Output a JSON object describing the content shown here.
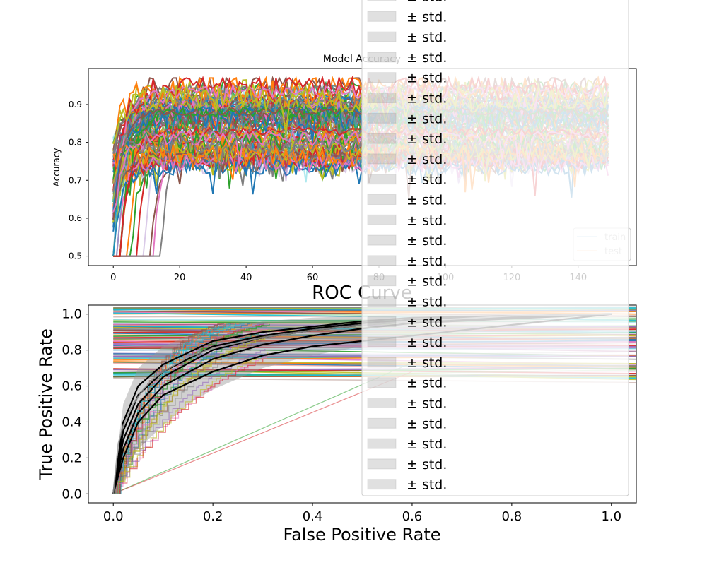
{
  "chart_data": [
    {
      "type": "line",
      "title": "Model Accuracy",
      "xlabel": "",
      "ylabel": "Accuracy",
      "xlim": [
        -7.5,
        157.5
      ],
      "ylim": [
        0.475,
        0.995
      ],
      "xticks": [
        0,
        20,
        40,
        60,
        80,
        100,
        120,
        140
      ],
      "yticks": [
        0.5,
        0.6,
        0.7,
        0.8,
        0.9
      ],
      "grid": false,
      "legend": {
        "position": "lower right",
        "entries": [
          "train",
          "test"
        ]
      },
      "x_range": [
        0,
        149
      ],
      "palette": [
        "#1f77b4",
        "#ff7f0e",
        "#2ca02c",
        "#d62728",
        "#9467bd",
        "#8c564b",
        "#e377c2",
        "#7f7f7f",
        "#bcbd22",
        "#17becf"
      ],
      "runs_description_values": {
        "start_accuracy_range": [
          0.5,
          0.82
        ],
        "plateau_accuracy_range": [
          0.72,
          0.95
        ],
        "late_start_epochs": [
          3,
          5,
          6,
          8,
          10,
          12,
          13,
          15
        ],
        "high_band": [
          0.88,
          0.945
        ],
        "mid_band": [
          0.8,
          0.89
        ],
        "low_band": [
          0.73,
          0.8
        ]
      }
    },
    {
      "type": "line",
      "title": "ROC Curve",
      "xlabel": "False Positive Rate",
      "ylabel": "True Positive Rate",
      "xlim": [
        -0.05,
        1.05
      ],
      "ylim": [
        -0.05,
        1.05
      ],
      "xticks": [
        0.0,
        0.2,
        0.4,
        0.6,
        0.8,
        1.0
      ],
      "yticks": [
        0.0,
        0.2,
        0.4,
        0.6,
        0.8,
        1.0
      ],
      "xtick_labels": [
        "0.0",
        "0.2",
        "0.4",
        "0.6",
        "0.8",
        "1.0"
      ],
      "ytick_labels": [
        "0.0",
        "0.2",
        "0.4",
        "0.6",
        "0.8",
        "1.0"
      ],
      "grid": false,
      "mean_roc": {
        "x": [
          0,
          0.01,
          0.02,
          0.04,
          0.06,
          0.08,
          0.1,
          0.15,
          0.2,
          0.3,
          0.4,
          0.5,
          0.6,
          0.8,
          1.0
        ],
        "y": [
          0,
          0.28,
          0.38,
          0.5,
          0.58,
          0.64,
          0.68,
          0.76,
          0.81,
          0.87,
          0.91,
          0.94,
          0.96,
          0.99,
          1.0
        ]
      },
      "std_band": {
        "x": [
          0,
          0.02,
          0.05,
          0.1,
          0.15,
          0.2,
          0.3,
          0.4,
          0.5,
          0.6,
          0.8,
          1.0
        ],
        "upper": [
          0.05,
          0.5,
          0.7,
          0.82,
          0.88,
          0.92,
          0.96,
          0.98,
          0.99,
          1.0,
          1.0,
          1.0
        ],
        "lower": [
          0,
          0.12,
          0.25,
          0.38,
          0.5,
          0.58,
          0.7,
          0.77,
          0.82,
          0.86,
          0.93,
          1.0
        ]
      },
      "black_curves": [
        {
          "x": [
            0,
            0.02,
            0.05,
            0.1,
            0.2,
            0.3,
            0.4,
            0.5,
            0.6,
            1.0
          ],
          "y": [
            0,
            0.3,
            0.5,
            0.65,
            0.8,
            0.87,
            0.91,
            0.94,
            0.96,
            1.0
          ]
        },
        {
          "x": [
            0,
            0.02,
            0.05,
            0.1,
            0.2,
            0.3,
            0.4,
            0.5,
            0.6,
            1.0
          ],
          "y": [
            0,
            0.4,
            0.6,
            0.72,
            0.85,
            0.9,
            0.93,
            0.96,
            0.98,
            1.0
          ]
        },
        {
          "x": [
            0,
            0.02,
            0.05,
            0.1,
            0.2,
            0.3,
            0.4,
            0.5,
            0.6,
            1.0
          ],
          "y": [
            0,
            0.2,
            0.4,
            0.55,
            0.68,
            0.77,
            0.82,
            0.85,
            0.88,
            1.0
          ]
        },
        {
          "x": [
            0,
            0.02,
            0.05,
            0.1,
            0.2,
            0.3,
            0.4,
            0.5,
            0.6,
            1.0
          ],
          "y": [
            0,
            0.35,
            0.55,
            0.68,
            0.82,
            0.88,
            0.92,
            0.95,
            0.97,
            1.0
          ]
        },
        {
          "x": [
            0,
            0.02,
            0.05,
            0.1,
            0.2,
            0.3,
            0.4,
            0.5,
            0.6,
            1.0
          ],
          "y": [
            0,
            0.25,
            0.45,
            0.6,
            0.75,
            0.83,
            0.88,
            0.92,
            0.95,
            1.0
          ]
        }
      ],
      "diagonals": [
        {
          "x": [
            0,
            0.6
          ],
          "y": [
            0,
            0.73
          ],
          "color": "#2ca02c"
        },
        {
          "x": [
            0,
            0.6
          ],
          "y": [
            0,
            0.68
          ],
          "color": "#d62728"
        }
      ],
      "flat_lines_y_range": [
        0.64,
        1.04
      ],
      "legend": {
        "position": "upper right",
        "entries": [
          "± std.",
          "± std.",
          "± std.",
          "± std.",
          "± std.",
          "± std.",
          "± std.",
          "± std.",
          "± std.",
          "± std.",
          "± std.",
          "± std.",
          "± std.",
          "± std.",
          "± std.",
          "± std.",
          "± std.",
          "± std.",
          "± std.",
          "± std.",
          "± std.",
          "± std.",
          "± std.",
          "± std.",
          "± std."
        ]
      }
    }
  ]
}
